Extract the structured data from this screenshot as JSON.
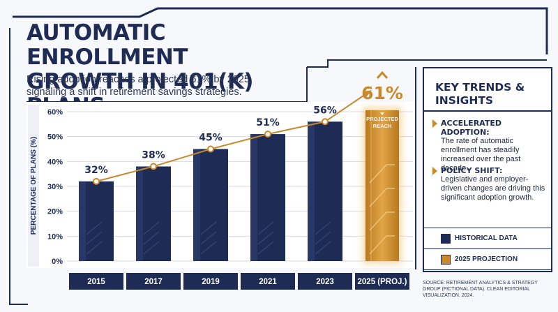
{
  "title": "AUTOMATIC ENROLLMENT GROWTH IN 401(K) PLANS",
  "subtitle": "Rising adoption reaches a projected 61% by 2025, signaling a shift in retirement savings strategies.",
  "chart_data": {
    "type": "bar",
    "categories": [
      "2015",
      "2017",
      "2019",
      "2021",
      "2023",
      "2025 (PROJ.)"
    ],
    "values": [
      32,
      38,
      45,
      51,
      56,
      61
    ],
    "data_labels": [
      "32%",
      "38%",
      "45%",
      "51%",
      "56%",
      "61%"
    ],
    "projected_index": 5,
    "projection_label": "PROJECTED REACH",
    "ylabel": "PERCENTAGE OF PLANS (%)",
    "xlabel": "",
    "ylim": [
      0,
      60
    ],
    "yticks": [
      0,
      10,
      20,
      30,
      40,
      50,
      60
    ],
    "ytick_labels": [
      "0%",
      "10%",
      "20%",
      "30%",
      "40%",
      "50%",
      "60%"
    ],
    "trend_line": true,
    "grid": true,
    "legend_placement": "bottom-right"
  },
  "colors": {
    "historical": "#1e2c55",
    "projection": "#c9892a",
    "trend": "#c9892a",
    "accent_dark": "#1e2c55"
  },
  "panel": {
    "title": "KEY TRENDS & INSIGHTS",
    "insights": [
      {
        "heading": "ACCELERATED ADOPTION:",
        "body": "The rate of automatic enrollment has steadily increased over the past decade."
      },
      {
        "heading": "POLICY SHIFT:",
        "body": "Legislative and employer-driven changes are driving this significant adoption growth."
      }
    ],
    "legend": [
      {
        "label": "HISTORICAL DATA",
        "color": "#1e2c55"
      },
      {
        "label": "2025 PROJECTION",
        "color": "#c9892a"
      }
    ]
  },
  "source": "SOURCE: RETIREMENT ANALYTICS & STRATEGY GROUP (FICTIONAL DATA). CLEAN EDITORIAL VISUALIZATION. 2024."
}
